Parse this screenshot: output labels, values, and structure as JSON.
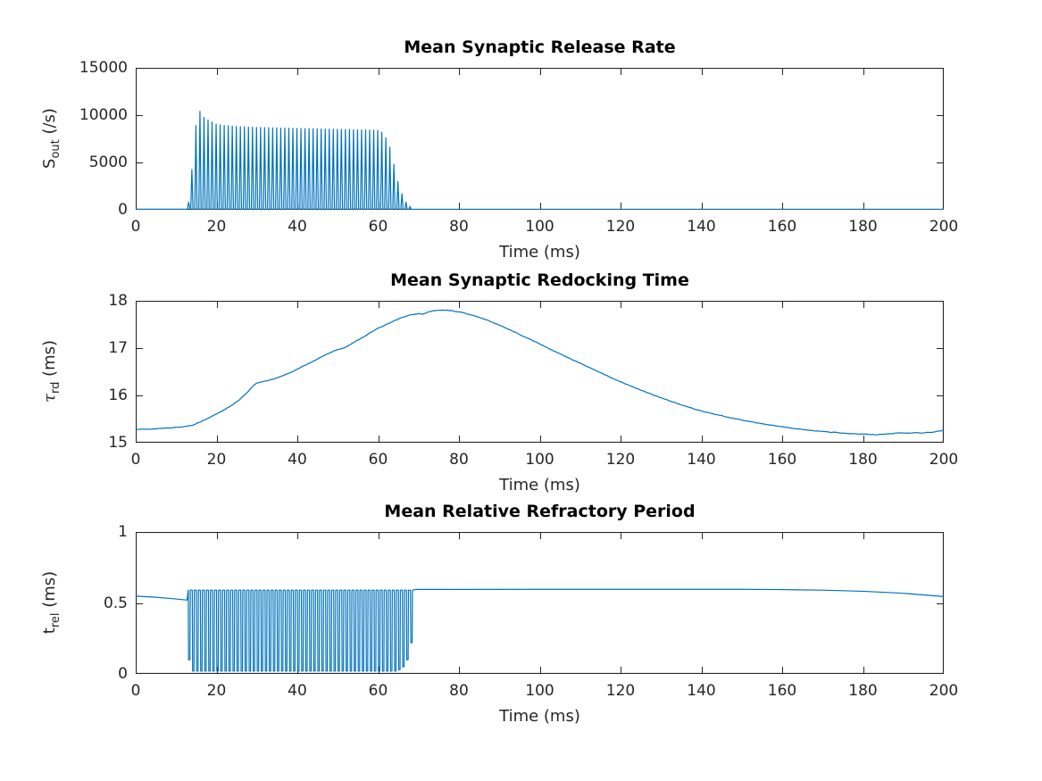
{
  "figure": {
    "background": "#ffffff"
  },
  "chart_data": [
    {
      "type": "line",
      "title": "Mean Synaptic Release Rate",
      "xlabel": "Time (ms)",
      "ylabel_main": "S",
      "ylabel_sub": "out",
      "ylabel_suffix": " (/s)",
      "xlim": [
        0,
        200
      ],
      "ylim": [
        0,
        15000
      ],
      "xticks": [
        0,
        20,
        40,
        60,
        80,
        100,
        120,
        140,
        160,
        180,
        200
      ],
      "xtick_labels": [
        "0",
        "20",
        "40",
        "60",
        "80",
        "100",
        "120",
        "140",
        "160",
        "180",
        "200"
      ],
      "yticks": [
        0,
        5000,
        10000,
        15000
      ],
      "ytick_labels": [
        "0",
        "5000",
        "10000",
        "15000"
      ],
      "line_color": "#0072BD",
      "axis_color": "#262626",
      "grid": false,
      "series_spec": {
        "kind": "spike_train",
        "baseline": 55,
        "onset_bump": {
          "t": 13.1,
          "peak": 800
        },
        "spike_start_ms": 13.9,
        "spike_end_ms": 68.8,
        "spike_period_ms": 1.0,
        "spike_half_width_ms": 0.28,
        "tail_value": 30,
        "peak_envelope": [
          [
            13.9,
            4250
          ],
          [
            14.9,
            8900
          ],
          [
            15.9,
            10400
          ],
          [
            16.9,
            9750
          ],
          [
            17.9,
            9500
          ],
          [
            19.9,
            9050
          ],
          [
            21.9,
            8900
          ],
          [
            24.9,
            8800
          ],
          [
            29.9,
            8700
          ],
          [
            34.9,
            8650
          ],
          [
            39.9,
            8600
          ],
          [
            44.9,
            8550
          ],
          [
            49.9,
            8500
          ],
          [
            54.9,
            8450
          ],
          [
            59.9,
            8400
          ],
          [
            60.9,
            8200
          ],
          [
            61.9,
            7600
          ],
          [
            62.9,
            6600
          ],
          [
            63.9,
            4800
          ],
          [
            64.9,
            3000
          ],
          [
            65.9,
            1700
          ],
          [
            66.9,
            800
          ],
          [
            67.9,
            350
          ],
          [
            68.8,
            150
          ]
        ]
      }
    },
    {
      "type": "line",
      "title": "Mean Synaptic Redocking Time",
      "xlabel": "Time (ms)",
      "ylabel_main": "τ",
      "ylabel_sub": "rd",
      "ylabel_suffix": " (ms)",
      "xlim": [
        0,
        200
      ],
      "ylim": [
        15,
        18
      ],
      "xticks": [
        0,
        20,
        40,
        60,
        80,
        100,
        120,
        140,
        160,
        180,
        200
      ],
      "xtick_labels": [
        "0",
        "20",
        "40",
        "60",
        "80",
        "100",
        "120",
        "140",
        "160",
        "180",
        "200"
      ],
      "yticks": [
        15,
        16,
        17,
        18
      ],
      "ytick_labels": [
        "15",
        "16",
        "17",
        "18"
      ],
      "line_color": "#0072BD",
      "axis_color": "#262626",
      "grid": false,
      "series_spec": {
        "kind": "sampled",
        "sample_step": 0.4,
        "noise_amp": 0.006,
        "points": [
          [
            0,
            15.28
          ],
          [
            4,
            15.29
          ],
          [
            8,
            15.31
          ],
          [
            12,
            15.34
          ],
          [
            14,
            15.37
          ],
          [
            16,
            15.44
          ],
          [
            18,
            15.52
          ],
          [
            20,
            15.61
          ],
          [
            22,
            15.7
          ],
          [
            24,
            15.8
          ],
          [
            26,
            15.93
          ],
          [
            28,
            16.1
          ],
          [
            29,
            16.2
          ],
          [
            30,
            16.26
          ],
          [
            31,
            16.28
          ],
          [
            33,
            16.32
          ],
          [
            35,
            16.37
          ],
          [
            37,
            16.44
          ],
          [
            39,
            16.51
          ],
          [
            41,
            16.6
          ],
          [
            43,
            16.68
          ],
          [
            45,
            16.77
          ],
          [
            47,
            16.86
          ],
          [
            49,
            16.94
          ],
          [
            50,
            16.97
          ],
          [
            51,
            16.99
          ],
          [
            52,
            17.02
          ],
          [
            54,
            17.12
          ],
          [
            56,
            17.22
          ],
          [
            58,
            17.32
          ],
          [
            60,
            17.42
          ],
          [
            62,
            17.5
          ],
          [
            64,
            17.58
          ],
          [
            66,
            17.65
          ],
          [
            68,
            17.7
          ],
          [
            70,
            17.73
          ],
          [
            71,
            17.71
          ],
          [
            72,
            17.75
          ],
          [
            73,
            17.78
          ],
          [
            75,
            17.8
          ],
          [
            77,
            17.8
          ],
          [
            79,
            17.78
          ],
          [
            81,
            17.75
          ],
          [
            83,
            17.7
          ],
          [
            85,
            17.65
          ],
          [
            87,
            17.59
          ],
          [
            89,
            17.52
          ],
          [
            91,
            17.45
          ],
          [
            93,
            17.37
          ],
          [
            95,
            17.29
          ],
          [
            97,
            17.21
          ],
          [
            99,
            17.13
          ],
          [
            102,
            17.0
          ],
          [
            105,
            16.88
          ],
          [
            108,
            16.76
          ],
          [
            111,
            16.64
          ],
          [
            114,
            16.52
          ],
          [
            117,
            16.4
          ],
          [
            120,
            16.29
          ],
          [
            123,
            16.18
          ],
          [
            126,
            16.08
          ],
          [
            129,
            15.98
          ],
          [
            132,
            15.89
          ],
          [
            135,
            15.8
          ],
          [
            138,
            15.72
          ],
          [
            141,
            15.65
          ],
          [
            144,
            15.59
          ],
          [
            147,
            15.53
          ],
          [
            150,
            15.48
          ],
          [
            153,
            15.43
          ],
          [
            156,
            15.39
          ],
          [
            159,
            15.35
          ],
          [
            162,
            15.31
          ],
          [
            165,
            15.28
          ],
          [
            168,
            15.25
          ],
          [
            171,
            15.23
          ],
          [
            174,
            15.21
          ],
          [
            177,
            15.19
          ],
          [
            180,
            15.18
          ],
          [
            183,
            15.17
          ],
          [
            185,
            15.18
          ],
          [
            187,
            15.19
          ],
          [
            189,
            15.21
          ],
          [
            191,
            15.2
          ],
          [
            193,
            15.21
          ],
          [
            195,
            15.21
          ],
          [
            197,
            15.22
          ],
          [
            200,
            15.26
          ]
        ]
      }
    },
    {
      "type": "line",
      "title": "Mean Relative Refractory Period",
      "xlabel": "Time (ms)",
      "ylabel_main": "t",
      "ylabel_sub": "rel",
      "ylabel_suffix": " (ms)",
      "xlim": [
        0,
        200
      ],
      "ylim": [
        0,
        1
      ],
      "xticks": [
        0,
        20,
        40,
        60,
        80,
        100,
        120,
        140,
        160,
        180,
        200
      ],
      "xtick_labels": [
        "0",
        "20",
        "40",
        "60",
        "80",
        "100",
        "120",
        "140",
        "160",
        "180",
        "200"
      ],
      "yticks": [
        0,
        0.5,
        1
      ],
      "ytick_labels": [
        "0",
        "0.5",
        "1"
      ],
      "line_color": "#0072BD",
      "axis_color": "#262626",
      "grid": false,
      "series_spec": {
        "kind": "square_train",
        "pre": [
          [
            0,
            0.548
          ],
          [
            5,
            0.54
          ],
          [
            10,
            0.528
          ],
          [
            12.7,
            0.52
          ]
        ],
        "cycle_start": 13.0,
        "cycle_end": 68.6,
        "period": 1.0,
        "top_value": 0.59,
        "dip_envelope": [
          [
            13.0,
            0.1
          ],
          [
            14.0,
            0.02
          ],
          [
            64.0,
            0.02
          ],
          [
            65.0,
            0.03
          ],
          [
            66.0,
            0.05
          ],
          [
            67.0,
            0.1
          ],
          [
            68.0,
            0.22
          ],
          [
            68.6,
            0.38
          ]
        ],
        "post": [
          [
            69.2,
            0.595
          ],
          [
            100,
            0.596
          ],
          [
            150,
            0.596
          ],
          [
            160,
            0.594
          ],
          [
            170,
            0.59
          ],
          [
            180,
            0.582
          ],
          [
            190,
            0.568
          ],
          [
            200,
            0.545
          ]
        ]
      }
    }
  ]
}
